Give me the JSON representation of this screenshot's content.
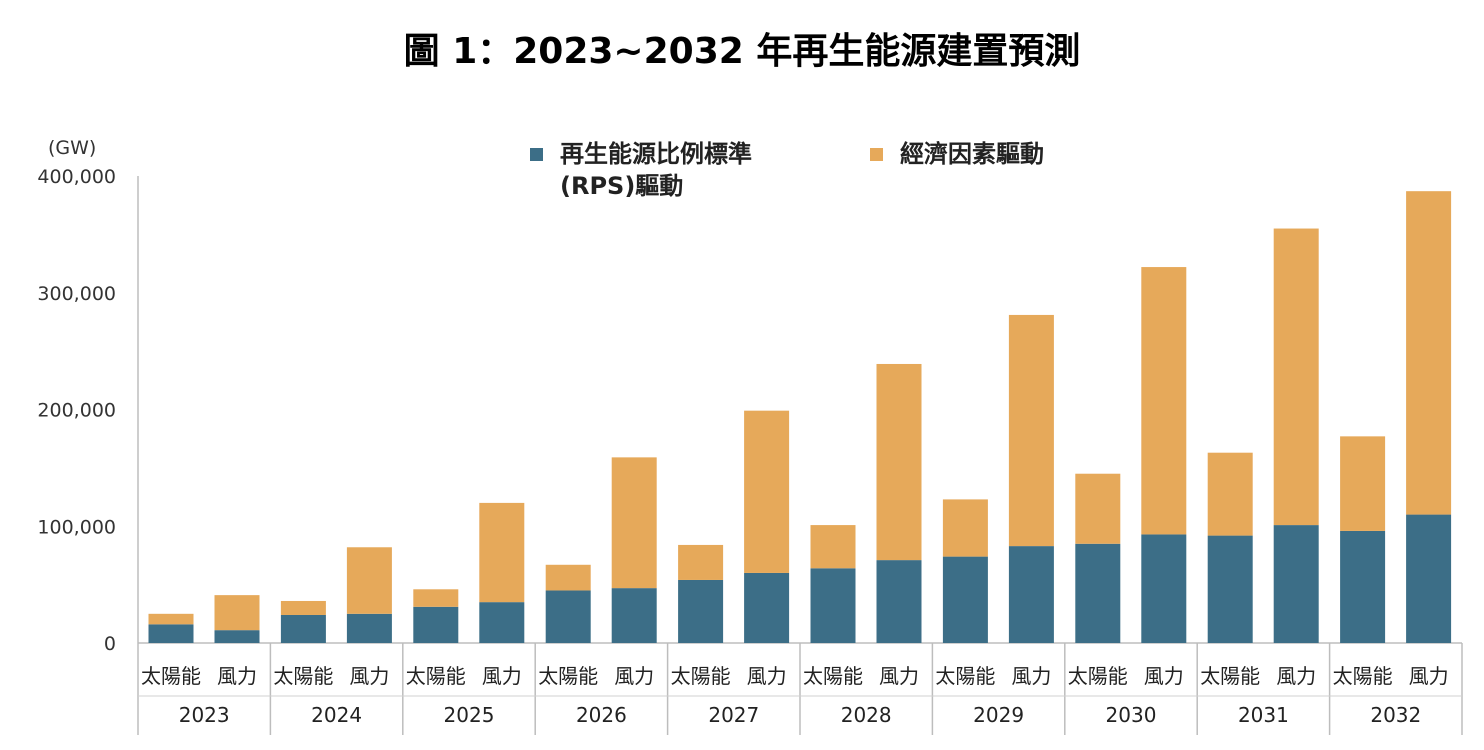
{
  "title": "圖 1：2023~2032 年再生能源建置預測",
  "chart_data": {
    "type": "bar",
    "stacked": true,
    "unit_label": "(GW)",
    "years": [
      "2023",
      "2024",
      "2025",
      "2026",
      "2027",
      "2028",
      "2029",
      "2030",
      "2031",
      "2032"
    ],
    "subcategories": [
      "太陽能",
      "風力"
    ],
    "series": [
      {
        "name": "再生能源比例標準(RPS)驅動",
        "color": "#3c6e87",
        "values": [
          16000,
          11000,
          24000,
          25000,
          31000,
          35000,
          45000,
          47000,
          54000,
          60000,
          64000,
          71000,
          74000,
          83000,
          85000,
          93000,
          92000,
          101000,
          96000,
          110000
        ]
      },
      {
        "name": "經濟因素驅動",
        "color": "#e6a95a",
        "values": [
          9000,
          30000,
          12000,
          57000,
          15000,
          85000,
          22000,
          112000,
          30000,
          139000,
          37000,
          168000,
          49000,
          198000,
          60000,
          229000,
          71000,
          254000,
          81000,
          277000
        ]
      }
    ],
    "ylim": [
      0,
      400000
    ],
    "yticks": [
      "0",
      "100,000",
      "200,000",
      "300,000",
      "400,000"
    ],
    "grid": false,
    "legend_position": "top-center"
  }
}
